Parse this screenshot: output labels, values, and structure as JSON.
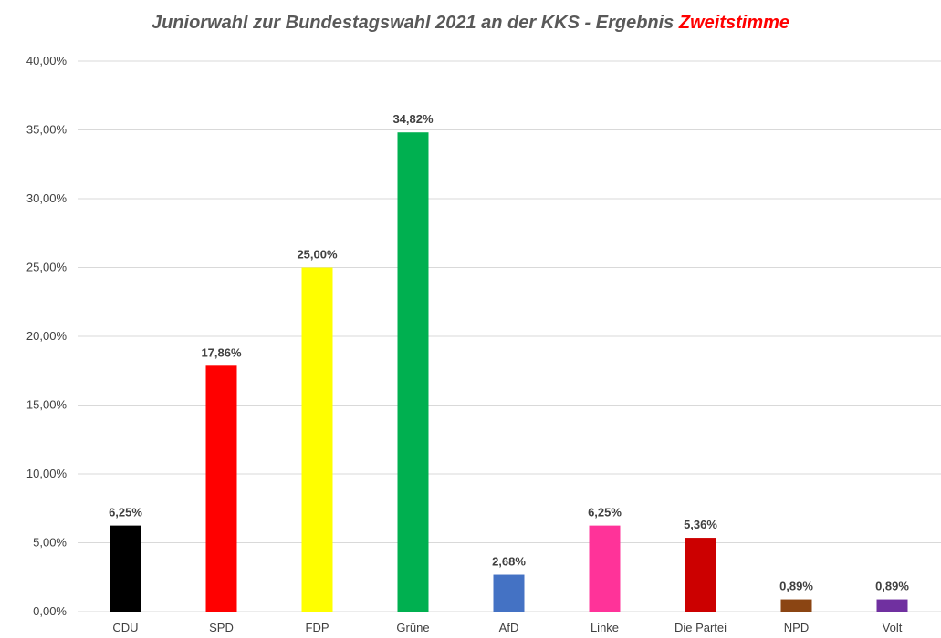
{
  "chart_data": {
    "type": "bar",
    "title": "Juniorwahl zur Bundestagswahl 2021 an der KKS - Ergebnis",
    "title_highlight": "Zweitstimme",
    "title_highlight_color": "#ff0000",
    "xlabel": "",
    "ylabel": "",
    "ylim": [
      0,
      40
    ],
    "ytick_values": [
      0,
      5,
      10,
      15,
      20,
      25,
      30,
      35,
      40
    ],
    "ytick_labels": [
      "0,00%",
      "5,00%",
      "10,00%",
      "15,00%",
      "20,00%",
      "25,00%",
      "30,00%",
      "35,00%",
      "40,00%"
    ],
    "grid": true,
    "legend": "none",
    "categories": [
      "CDU",
      "SPD",
      "FDP",
      "Grüne",
      "AfD",
      "Linke",
      "Die Partei",
      "NPD",
      "Volt"
    ],
    "values": [
      6.25,
      17.86,
      25.0,
      34.82,
      2.68,
      6.25,
      5.36,
      0.89,
      0.89
    ],
    "data_labels": [
      "6,25%",
      "17,86%",
      "25,00%",
      "34,82%",
      "2,68%",
      "6,25%",
      "5,36%",
      "0,89%",
      "0,89%"
    ],
    "colors": [
      "#000000",
      "#ff0000",
      "#ffff00",
      "#00b050",
      "#4472c4",
      "#ff3399",
      "#cc0000",
      "#8b4513",
      "#7030a0"
    ]
  }
}
